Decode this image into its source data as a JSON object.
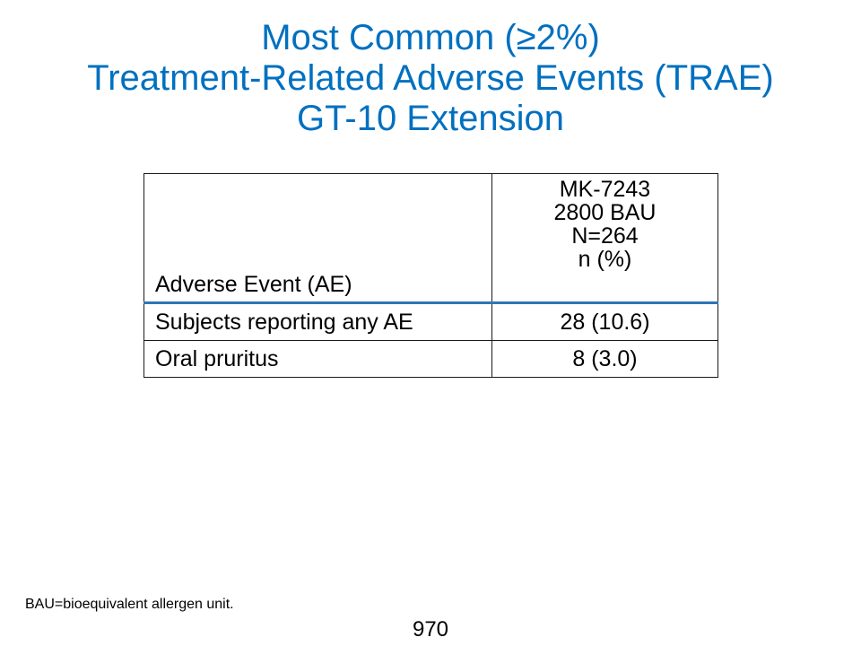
{
  "title": {
    "line1": "Most Common (≥2%)",
    "line2": "Treatment-Related Adverse Events (TRAE)",
    "line3": "GT-10 Extension"
  },
  "table": {
    "header": {
      "col1": "Adverse Event (AE)",
      "col2_lines": [
        "MK-7243",
        "2800 BAU",
        "N=264",
        "n (%)"
      ]
    },
    "rows": [
      {
        "event": "Subjects reporting any AE",
        "value": "28 (10.6)"
      },
      {
        "event": "Oral pruritus",
        "value": "8 (3.0)"
      }
    ]
  },
  "footnote": "BAU=bioequivalent allergen unit.",
  "page_number": "970",
  "colors": {
    "title": "#0070c0",
    "header_rule": "#2e75b6"
  }
}
